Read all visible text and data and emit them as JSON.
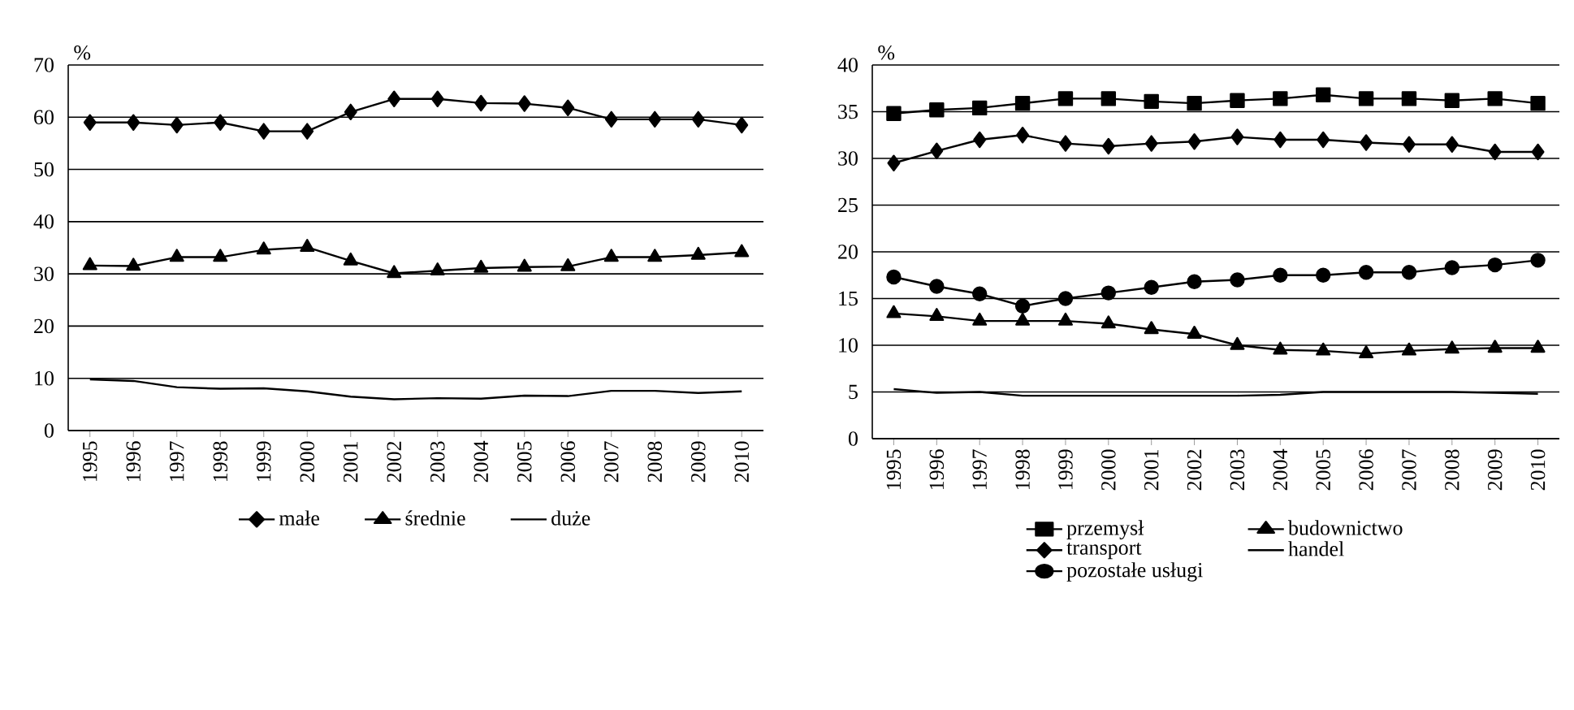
{
  "chart_data": [
    {
      "type": "line",
      "ylabel": "%",
      "categories": [
        "1995",
        "1996",
        "1997",
        "1998",
        "1999",
        "2000",
        "2001",
        "2002",
        "2003",
        "2004",
        "2005",
        "2006",
        "2007",
        "2008",
        "2009",
        "2010"
      ],
      "ylim": [
        0,
        70
      ],
      "yticks": [
        0,
        10,
        20,
        30,
        40,
        50,
        60,
        70
      ],
      "grid": "y",
      "legend": "bottom",
      "series": [
        {
          "name": "małe",
          "color": "#000000",
          "marker": "diamond",
          "values": [
            59,
            59,
            58.5,
            59,
            57.3,
            57.3,
            61,
            63.5,
            63.5,
            62.7,
            62.6,
            61.8,
            59.6,
            59.6,
            59.6,
            58.5
          ]
        },
        {
          "name": "średnie",
          "color": "#000000",
          "marker": "triangle",
          "values": [
            31.6,
            31.5,
            33.2,
            33.2,
            34.6,
            35.1,
            32.5,
            30.1,
            30.6,
            31.1,
            31.3,
            31.4,
            33.2,
            33.2,
            33.6,
            34.1
          ]
        },
        {
          "name": "duże",
          "color": "#000000",
          "marker": "none",
          "values": [
            9.8,
            9.5,
            8.3,
            8.0,
            8.1,
            7.5,
            6.5,
            6.0,
            6.2,
            6.1,
            6.7,
            6.6,
            7.6,
            7.6,
            7.2,
            7.5
          ]
        }
      ]
    },
    {
      "type": "line",
      "ylabel": "%",
      "categories": [
        "1995",
        "1996",
        "1997",
        "1998",
        "1999",
        "2000",
        "2001",
        "2002",
        "2003",
        "2004",
        "2005",
        "2006",
        "2007",
        "2008",
        "2009",
        "2010"
      ],
      "ylim": [
        0,
        40
      ],
      "yticks": [
        0,
        5,
        10,
        15,
        20,
        25,
        30,
        35,
        40
      ],
      "grid": "y",
      "legend": "bottom",
      "series": [
        {
          "name": "przemysł",
          "color": "#000000",
          "marker": "square",
          "values": [
            34.8,
            35.2,
            35.4,
            35.9,
            36.4,
            36.4,
            36.1,
            35.9,
            36.2,
            36.4,
            36.8,
            36.4,
            36.4,
            36.2,
            36.4,
            35.9
          ]
        },
        {
          "name": "budownictwo",
          "color": "#000000",
          "marker": "triangle",
          "values": [
            13.4,
            13.1,
            12.6,
            12.6,
            12.6,
            12.3,
            11.7,
            11.2,
            10,
            9.5,
            9.4,
            9.1,
            9.4,
            9.6,
            9.7,
            9.7
          ]
        },
        {
          "name": "transport",
          "color": "#000000",
          "marker": "diamond",
          "values": [
            29.5,
            30.8,
            32,
            32.5,
            31.6,
            31.3,
            31.6,
            31.8,
            32.3,
            32,
            32,
            31.7,
            31.5,
            31.5,
            30.7,
            30.7
          ]
        },
        {
          "name": "handel",
          "color": "#000000",
          "marker": "none",
          "values": [
            5.3,
            4.9,
            5.0,
            4.6,
            4.6,
            4.6,
            4.6,
            4.6,
            4.6,
            4.7,
            5.0,
            5.0,
            5.0,
            5.0,
            4.9,
            4.8
          ]
        },
        {
          "name": "pozostałe usługi",
          "color": "#000000",
          "marker": "circle",
          "values": [
            17.3,
            16.3,
            15.5,
            14.2,
            15,
            15.6,
            16.2,
            16.8,
            17,
            17.5,
            17.5,
            17.8,
            17.8,
            18.3,
            18.6,
            19.1
          ]
        }
      ]
    }
  ]
}
